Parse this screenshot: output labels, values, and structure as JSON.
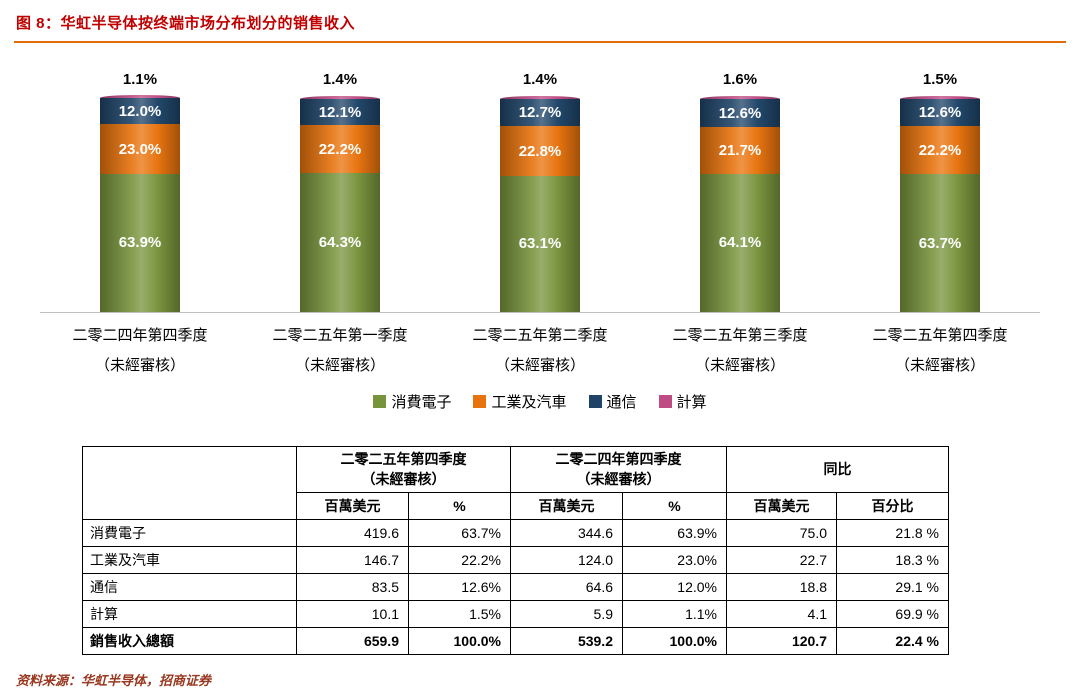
{
  "title": "图 8：华虹半导体按终端市场分布划分的销售收入",
  "source_note": "资料来源：华虹半导体，招商证券",
  "colors": {
    "title_red": "#C00000",
    "rule_orange": "#E36C09",
    "source_red": "#99381F",
    "baseline_gray": "#C0C0C0"
  },
  "chart_data": {
    "type": "bar",
    "stacked": true,
    "unit": "%",
    "ylim": [
      0,
      100
    ],
    "grid": false,
    "legend_position": "bottom",
    "categories": [
      "二零二四年第四季度",
      "二零二五年第一季度",
      "二零二五年第二季度",
      "二零二五年第三季度",
      "二零二五年第四季度"
    ],
    "category_note": "（未經審核）",
    "series": [
      {
        "name": "消費電子",
        "color": "#77933C",
        "values": [
          63.9,
          64.3,
          63.1,
          64.1,
          63.7
        ]
      },
      {
        "name": "工業及汽車",
        "color": "#E8720C",
        "values": [
          23.0,
          22.2,
          22.8,
          21.7,
          22.2
        ]
      },
      {
        "name": "通信",
        "color": "#1F4468",
        "values": [
          12.0,
          12.1,
          12.7,
          12.6,
          12.6
        ]
      },
      {
        "name": "計算",
        "color": "#BE4B84",
        "values": [
          1.1,
          1.4,
          1.4,
          1.6,
          1.5
        ]
      }
    ],
    "top_labels": [
      "1.1%",
      "1.4%",
      "1.4%",
      "1.6%",
      "1.5%"
    ]
  },
  "table": {
    "groups": [
      "二零二五年第四季度\n（未經審核）",
      "二零二四年第四季度\n（未經審核）",
      "同比"
    ],
    "subheaders": [
      "百萬美元",
      "%",
      "百萬美元",
      "%",
      "百萬美元",
      "百分比"
    ],
    "rows": [
      {
        "label": "消費電子",
        "cells": [
          "419.6",
          "63.7%",
          "344.6",
          "63.9%",
          "75.0",
          "21.8 %"
        ],
        "bold": false
      },
      {
        "label": "工業及汽車",
        "cells": [
          "146.7",
          "22.2%",
          "124.0",
          "23.0%",
          "22.7",
          "18.3 %"
        ],
        "bold": false
      },
      {
        "label": "通信",
        "cells": [
          "83.5",
          "12.6%",
          "64.6",
          "12.0%",
          "18.8",
          "29.1 %"
        ],
        "bold": false
      },
      {
        "label": "計算",
        "cells": [
          "10.1",
          "1.5%",
          "5.9",
          "1.1%",
          "4.1",
          "69.9 %"
        ],
        "bold": false
      },
      {
        "label": "銷售收入總額",
        "cells": [
          "659.9",
          "100.0%",
          "539.2",
          "100.0%",
          "120.7",
          "22.4 %"
        ],
        "bold": true
      }
    ]
  }
}
